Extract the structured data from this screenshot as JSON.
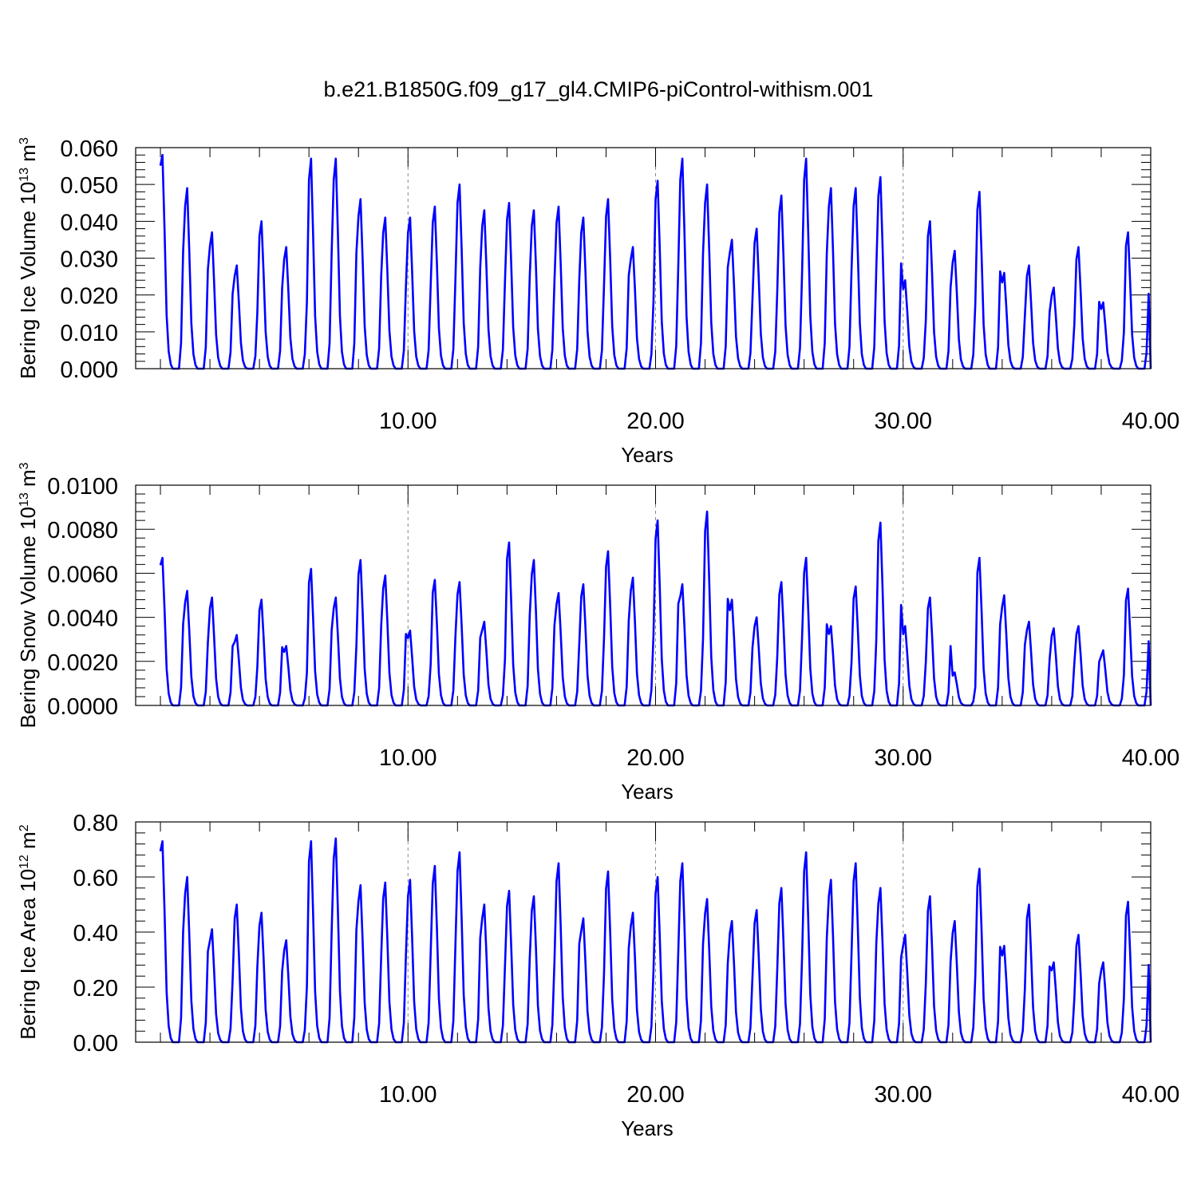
{
  "title": "b.e21.B1850G.f09_g17_gl4.CMIP6-piControl-withism.001",
  "colors": {
    "series": "#0000ff",
    "axes": "#000000",
    "grid": "#888888"
  },
  "chart_data": [
    {
      "type": "line",
      "title": "",
      "xlabel": "Years",
      "ylabel": "Bering Ice Volume 10",
      "ylabel_exp": "13",
      "ylabel_unit": " m",
      "ylabel_unit_exp": "3",
      "xlim": [
        -1.0,
        40.0
      ],
      "ylim": [
        0.0,
        0.06
      ],
      "xticks": [
        10.0,
        20.0,
        30.0,
        40.0
      ],
      "xtick_labels": [
        "10.00",
        "20.00",
        "30.00",
        "40.00"
      ],
      "yticks": [
        0.0,
        0.01,
        0.02,
        0.03,
        0.04,
        0.05,
        0.06
      ],
      "ytick_labels": [
        "0.000",
        "0.010",
        "0.020",
        "0.030",
        "0.040",
        "0.050",
        "0.060"
      ],
      "grid": "dashed vertical lines at 10, 20, 30",
      "peaks": [
        0.058,
        0.049,
        0.037,
        0.028,
        0.04,
        0.033,
        0.057,
        0.057,
        0.046,
        0.041,
        0.041,
        0.044,
        0.05,
        0.043,
        0.045,
        0.043,
        0.044,
        0.041,
        0.046,
        0.033,
        0.051,
        0.057,
        0.05,
        0.035,
        0.038,
        0.047,
        0.057,
        0.049,
        0.049,
        0.052,
        0.024,
        0.04,
        0.032,
        0.048,
        0.026,
        0.028,
        0.022,
        0.033,
        0.018,
        0.037
      ]
    },
    {
      "type": "line",
      "title": "",
      "xlabel": "Years",
      "ylabel": "Bering Snow Volume 10",
      "ylabel_exp": "13",
      "ylabel_unit": " m",
      "ylabel_unit_exp": "3",
      "xlim": [
        -1.0,
        40.0
      ],
      "ylim": [
        0.0,
        0.01
      ],
      "xticks": [
        10.0,
        20.0,
        30.0,
        40.0
      ],
      "xtick_labels": [
        "10.00",
        "20.00",
        "30.00",
        "40.00"
      ],
      "yticks": [
        0.0,
        0.002,
        0.004,
        0.006,
        0.008,
        0.01
      ],
      "ytick_labels": [
        "0.0000",
        "0.0020",
        "0.0040",
        "0.0060",
        "0.0080",
        "0.0100"
      ],
      "grid": "dashed vertical lines at 10, 20, 30",
      "peaks": [
        0.0067,
        0.0052,
        0.0049,
        0.0032,
        0.0048,
        0.0027,
        0.0062,
        0.0049,
        0.0066,
        0.0059,
        0.0034,
        0.0057,
        0.0056,
        0.0038,
        0.0074,
        0.0066,
        0.0051,
        0.0055,
        0.007,
        0.0058,
        0.0084,
        0.0055,
        0.0088,
        0.0048,
        0.004,
        0.0056,
        0.0067,
        0.0036,
        0.0054,
        0.0083,
        0.0036,
        0.0049,
        0.0015,
        0.0067,
        0.005,
        0.0038,
        0.0035,
        0.0036,
        0.0025,
        0.0053
      ]
    },
    {
      "type": "line",
      "title": "",
      "xlabel": "Years",
      "ylabel": "Bering Ice Area 10",
      "ylabel_exp": "12",
      "ylabel_unit": " m",
      "ylabel_unit_exp": "2",
      "xlim": [
        -1.0,
        40.0
      ],
      "ylim": [
        0.0,
        0.8
      ],
      "xticks": [
        10.0,
        20.0,
        30.0,
        40.0
      ],
      "xtick_labels": [
        "10.00",
        "20.00",
        "30.00",
        "40.00"
      ],
      "yticks": [
        0.0,
        0.2,
        0.4,
        0.6,
        0.8
      ],
      "ytick_labels": [
        "0.00",
        "0.20",
        "0.40",
        "0.60",
        "0.80"
      ],
      "grid": "dashed vertical lines at 10, 20, 30",
      "peaks": [
        0.73,
        0.6,
        0.41,
        0.5,
        0.47,
        0.37,
        0.73,
        0.74,
        0.57,
        0.58,
        0.59,
        0.64,
        0.69,
        0.5,
        0.55,
        0.53,
        0.65,
        0.45,
        0.62,
        0.47,
        0.6,
        0.65,
        0.52,
        0.44,
        0.48,
        0.56,
        0.69,
        0.59,
        0.65,
        0.56,
        0.39,
        0.53,
        0.44,
        0.63,
        0.35,
        0.5,
        0.29,
        0.39,
        0.29,
        0.51
      ]
    }
  ]
}
